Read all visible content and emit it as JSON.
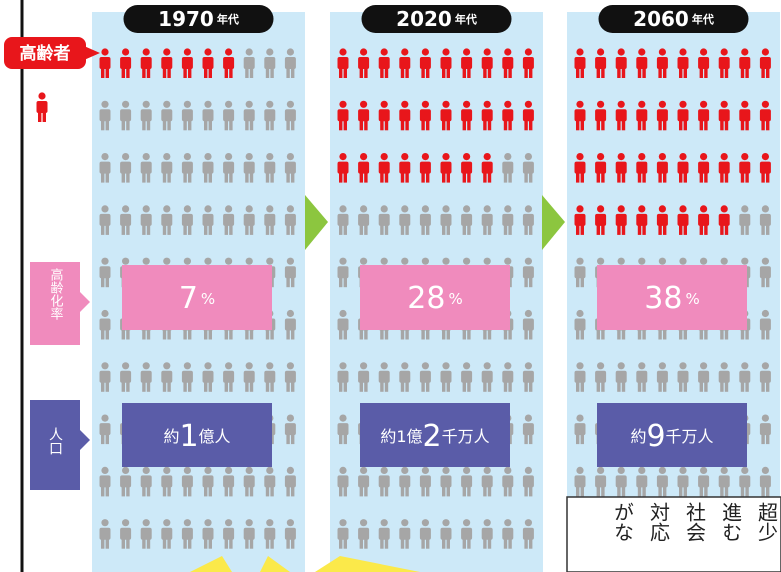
{
  "legend": {
    "elderly": "高齢者",
    "rate_label": "高齢化率",
    "population_label": "人口"
  },
  "periods": [
    {
      "year": "1970",
      "suffix": "年代",
      "rate": 7,
      "rate_unit": "%",
      "population": [
        "約",
        "1",
        "億人"
      ]
    },
    {
      "year": "2020",
      "suffix": "年代",
      "rate": 28,
      "rate_unit": "%",
      "population": [
        "約1億",
        "2",
        "千万人"
      ]
    },
    {
      "year": "2060",
      "suffix": "年代",
      "rate": 38,
      "rate_unit": "%",
      "population": [
        "約",
        "9",
        "千万人"
      ]
    }
  ],
  "note_columns": [
    "超少",
    "進む",
    "社会",
    "対応",
    "がな"
  ]
}
